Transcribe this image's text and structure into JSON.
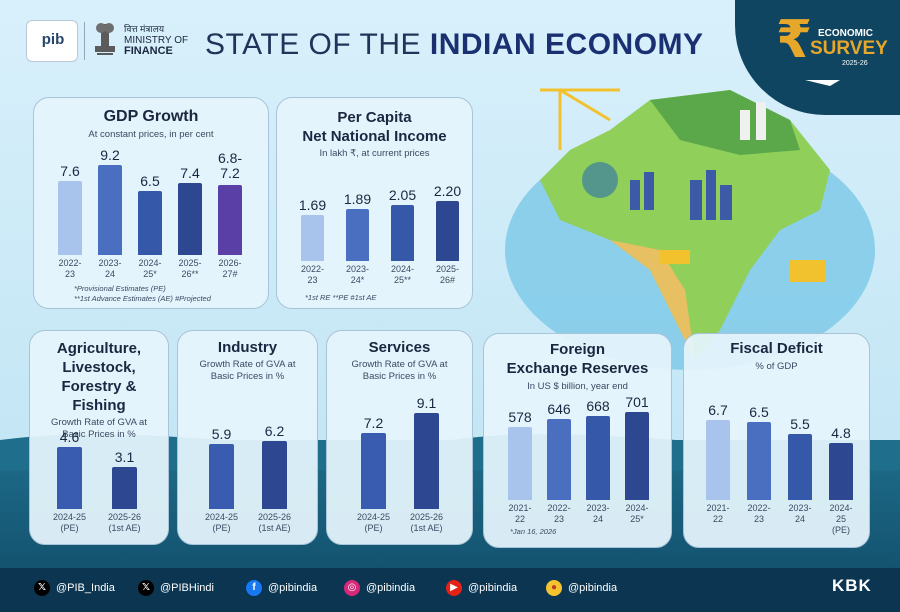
{
  "header": {
    "pib_logo_text": "pib",
    "ministry_hindi": "वित्त मंत्रालय",
    "ministry_en_1": "MINISTRY OF",
    "ministry_en_2": "FINANCE",
    "title_light": "STATE OF THE",
    "title_bold": "INDIAN ECONOMY"
  },
  "badge": {
    "symbol": "₹",
    "line1": "ECONOMIC",
    "line2": "SURVEY",
    "year": "2025-26"
  },
  "chart_data": [
    {
      "id": "gdp",
      "type": "bar",
      "title": "GDP Growth",
      "subtitle": "At constant prices, in per cent",
      "categories": [
        "2022-\n23",
        "2023-\n24",
        "2024-\n25*",
        "2025-\n26**",
        "2026-\n27#"
      ],
      "value_labels": [
        "7.6",
        "9.2",
        "6.5",
        "7.4",
        "6.8-\n7.2"
      ],
      "values": [
        7.6,
        9.2,
        6.5,
        7.4,
        7.2
      ],
      "colors": [
        "#a9c4ec",
        "#4a6ec0",
        "#3558a8",
        "#2d4890",
        "#5a3fa6"
      ],
      "ylim": [
        0,
        9.2
      ],
      "notes": [
        "*Provisional Estimates (PE)",
        "**1st Advance Estimates (AE) #Projected"
      ]
    },
    {
      "id": "pcnni",
      "type": "bar",
      "title": "Per Capita\nNet National Income",
      "subtitle": "In lakh ₹, at current prices",
      "categories": [
        "2022-\n23",
        "2023-\n24*",
        "2024-\n25**",
        "2025-\n26#"
      ],
      "value_labels": [
        "1.69",
        "1.89",
        "2.05",
        "2.20"
      ],
      "values": [
        1.69,
        1.89,
        2.05,
        2.2
      ],
      "colors": [
        "#a9c4ec",
        "#4a6ec0",
        "#3558a8",
        "#2d4890"
      ],
      "ylim": [
        0,
        2.2
      ],
      "notes": [
        "*1st RE  **PE  #1st AE"
      ]
    },
    {
      "id": "agri",
      "type": "bar",
      "title": "Agriculture,\nLivestock,\nForestry &\nFishing",
      "subtitle": "Growth Rate of GVA at\nBasic Prices in %",
      "categories": [
        "2024-25\n(PE)",
        "2025-26\n(1st AE)"
      ],
      "value_labels": [
        "4.6",
        "3.1"
      ],
      "values": [
        4.6,
        3.1
      ],
      "colors": [
        "#3a5cb0",
        "#2d4890"
      ],
      "ylim": [
        0,
        4.6
      ],
      "notes": []
    },
    {
      "id": "industry",
      "type": "bar",
      "title": "Industry",
      "subtitle": "Growth Rate of GVA at\nBasic Prices in %",
      "categories": [
        "2024-25\n(PE)",
        "2025-26\n(1st AE)"
      ],
      "value_labels": [
        "5.9",
        "6.2"
      ],
      "values": [
        5.9,
        6.2
      ],
      "colors": [
        "#3a5cb0",
        "#2d4890"
      ],
      "ylim": [
        0,
        6.2
      ],
      "notes": []
    },
    {
      "id": "services",
      "type": "bar",
      "title": "Services",
      "subtitle": "Growth Rate of GVA at\nBasic Prices in %",
      "categories": [
        "2024-25\n(PE)",
        "2025-26\n(1st AE)"
      ],
      "value_labels": [
        "7.2",
        "9.1"
      ],
      "values": [
        7.2,
        9.1
      ],
      "colors": [
        "#3a5cb0",
        "#2d4890"
      ],
      "ylim": [
        0,
        9.1
      ],
      "notes": []
    },
    {
      "id": "forex",
      "type": "bar",
      "title": "Foreign\nExchange Reserves",
      "subtitle": "In US $ billion, year end",
      "categories": [
        "2021-\n22",
        "2022-\n23",
        "2023-\n24",
        "2024-\n25*"
      ],
      "value_labels": [
        "578",
        "646",
        "668",
        "701"
      ],
      "values": [
        578,
        646,
        668,
        701
      ],
      "colors": [
        "#a9c4ec",
        "#4a6ec0",
        "#3558a8",
        "#2d4890"
      ],
      "ylim": [
        0,
        701
      ],
      "notes": [
        "*Jan 16, 2026"
      ]
    },
    {
      "id": "fiscal",
      "type": "bar",
      "title": "Fiscal Deficit",
      "subtitle": "% of GDP",
      "categories": [
        "2021-\n22",
        "2022-\n23",
        "2023-\n24",
        "2024-\n25\n(PE)"
      ],
      "value_labels": [
        "6.7",
        "6.5",
        "5.5",
        "4.8"
      ],
      "values": [
        6.7,
        6.5,
        5.5,
        4.8
      ],
      "colors": [
        "#a9c4ec",
        "#4a6ec0",
        "#3558a8",
        "#2d4890"
      ],
      "ylim": [
        0,
        6.7
      ],
      "notes": []
    }
  ],
  "footer": {
    "social": [
      {
        "icon": "x-icon",
        "handle": "@PIB_India"
      },
      {
        "icon": "x-icon",
        "handle": "@PIBHindi"
      },
      {
        "icon": "facebook-icon",
        "handle": "@pibindia"
      },
      {
        "icon": "instagram-icon",
        "handle": "@pibindia"
      },
      {
        "icon": "youtube-icon",
        "handle": "@pibindia"
      },
      {
        "icon": "koo-icon",
        "handle": "@pibindia"
      }
    ],
    "credit": "KBK"
  }
}
